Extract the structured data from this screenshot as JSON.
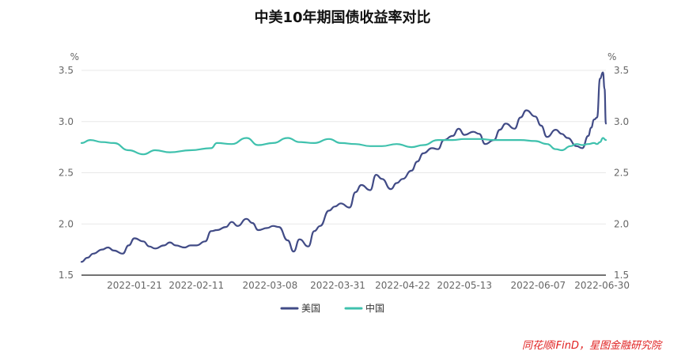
{
  "title": "中美10年期国债收益率对比",
  "source": "同花顺iFinD，星图金融研究院",
  "colors": {
    "us": "#414b86",
    "cn": "#3fc1ad",
    "grid": "#e8e8e8",
    "axis": "#444"
  },
  "chart_data": {
    "type": "line",
    "title": "中美10年期国债收益率对比",
    "y_unit_left": "%",
    "y_unit_right": "%",
    "ylim": [
      1.5,
      3.5
    ],
    "yticks": [
      "3.5",
      "3.0",
      "2.5",
      "2.0",
      "1.5"
    ],
    "xlim": [
      "2022-01-03",
      "2022-06-30"
    ],
    "xticks": [
      "2022-01-21",
      "2022-02-11",
      "2022-03-08",
      "2022-03-31",
      "2022-04-22",
      "2022-05-13",
      "2022-06-07",
      "2022-06-30"
    ],
    "legend": "bottom-center",
    "series": [
      {
        "name": "美国",
        "color": "#414b86",
        "points": [
          [
            "2022-01-03",
            1.63
          ],
          [
            "2022-01-05",
            1.67
          ],
          [
            "2022-01-07",
            1.71
          ],
          [
            "2022-01-10",
            1.75
          ],
          [
            "2022-01-12",
            1.77
          ],
          [
            "2022-01-14",
            1.74
          ],
          [
            "2022-01-17",
            1.71
          ],
          [
            "2022-01-19",
            1.79
          ],
          [
            "2022-01-21",
            1.86
          ],
          [
            "2022-01-24",
            1.83
          ],
          [
            "2022-01-26",
            1.78
          ],
          [
            "2022-01-28",
            1.76
          ],
          [
            "2022-01-31",
            1.79
          ],
          [
            "2022-02-02",
            1.82
          ],
          [
            "2022-02-04",
            1.79
          ],
          [
            "2022-02-07",
            1.77
          ],
          [
            "2022-02-09",
            1.79
          ],
          [
            "2022-02-11",
            1.79
          ],
          [
            "2022-02-14",
            1.83
          ],
          [
            "2022-02-16",
            1.93
          ],
          [
            "2022-02-18",
            1.94
          ],
          [
            "2022-02-21",
            1.97
          ],
          [
            "2022-02-23",
            2.02
          ],
          [
            "2022-02-25",
            1.98
          ],
          [
            "2022-02-28",
            2.05
          ],
          [
            "2022-03-02",
            2.01
          ],
          [
            "2022-03-04",
            1.94
          ],
          [
            "2022-03-07",
            1.96
          ],
          [
            "2022-03-09",
            1.98
          ],
          [
            "2022-03-11",
            1.97
          ],
          [
            "2022-03-14",
            1.84
          ],
          [
            "2022-03-16",
            1.73
          ],
          [
            "2022-03-18",
            1.85
          ],
          [
            "2022-03-21",
            1.78
          ],
          [
            "2022-03-23",
            1.93
          ],
          [
            "2022-03-25",
            1.98
          ],
          [
            "2022-03-28",
            2.13
          ],
          [
            "2022-03-30",
            2.17
          ],
          [
            "2022-04-01",
            2.2
          ],
          [
            "2022-04-04",
            2.16
          ],
          [
            "2022-04-06",
            2.31
          ],
          [
            "2022-04-08",
            2.38
          ],
          [
            "2022-04-11",
            2.33
          ],
          [
            "2022-04-13",
            2.48
          ],
          [
            "2022-04-15",
            2.44
          ],
          [
            "2022-04-18",
            2.34
          ],
          [
            "2022-04-20",
            2.4
          ],
          [
            "2022-04-22",
            2.44
          ],
          [
            "2022-04-25",
            2.52
          ],
          [
            "2022-04-27",
            2.61
          ],
          [
            "2022-04-29",
            2.69
          ],
          [
            "2022-05-02",
            2.74
          ],
          [
            "2022-05-04",
            2.73
          ],
          [
            "2022-05-06",
            2.82
          ],
          [
            "2022-05-09",
            2.86
          ],
          [
            "2022-05-11",
            2.93
          ],
          [
            "2022-05-13",
            2.87
          ],
          [
            "2022-05-16",
            2.9
          ],
          [
            "2022-05-18",
            2.88
          ],
          [
            "2022-05-20",
            2.78
          ],
          [
            "2022-05-23",
            2.82
          ],
          [
            "2022-05-25",
            2.92
          ],
          [
            "2022-05-27",
            2.98
          ],
          [
            "2022-05-30",
            2.93
          ],
          [
            "2022-06-01",
            3.04
          ],
          [
            "2022-06-03",
            3.11
          ],
          [
            "2022-06-06",
            3.05
          ],
          [
            "2022-06-08",
            2.96
          ],
          [
            "2022-06-10",
            2.85
          ],
          [
            "2022-06-13",
            2.92
          ],
          [
            "2022-06-15",
            2.88
          ],
          [
            "2022-06-17",
            2.84
          ],
          [
            "2022-06-20",
            2.76
          ],
          [
            "2022-06-22",
            2.74
          ],
          [
            "2022-06-24",
            2.86
          ],
          [
            "2022-06-25",
            2.94
          ],
          [
            "2022-06-26",
            3.02
          ],
          [
            "2022-06-27",
            3.04
          ],
          [
            "2022-06-28",
            3.42
          ],
          [
            "2022-06-29",
            3.48
          ],
          [
            "2022-06-29",
            3.32
          ],
          [
            "2022-06-30",
            2.98
          ]
        ]
      },
      {
        "name": "中国",
        "color": "#3fc1ad",
        "points": [
          [
            "2022-01-03",
            2.79
          ],
          [
            "2022-01-06",
            2.82
          ],
          [
            "2022-01-10",
            2.8
          ],
          [
            "2022-01-14",
            2.79
          ],
          [
            "2022-01-19",
            2.72
          ],
          [
            "2022-01-24",
            2.68
          ],
          [
            "2022-01-28",
            2.72
          ],
          [
            "2022-02-02",
            2.7
          ],
          [
            "2022-02-09",
            2.72
          ],
          [
            "2022-02-16",
            2.74
          ],
          [
            "2022-02-18",
            2.79
          ],
          [
            "2022-02-23",
            2.78
          ],
          [
            "2022-02-28",
            2.84
          ],
          [
            "2022-03-04",
            2.77
          ],
          [
            "2022-03-09",
            2.79
          ],
          [
            "2022-03-14",
            2.84
          ],
          [
            "2022-03-18",
            2.8
          ],
          [
            "2022-03-23",
            2.79
          ],
          [
            "2022-03-28",
            2.83
          ],
          [
            "2022-04-01",
            2.79
          ],
          [
            "2022-04-06",
            2.78
          ],
          [
            "2022-04-11",
            2.76
          ],
          [
            "2022-04-15",
            2.76
          ],
          [
            "2022-04-20",
            2.78
          ],
          [
            "2022-04-25",
            2.75
          ],
          [
            "2022-04-29",
            2.77
          ],
          [
            "2022-05-04",
            2.82
          ],
          [
            "2022-05-09",
            2.82
          ],
          [
            "2022-05-13",
            2.83
          ],
          [
            "2022-05-18",
            2.83
          ],
          [
            "2022-05-23",
            2.82
          ],
          [
            "2022-05-27",
            2.82
          ],
          [
            "2022-06-01",
            2.82
          ],
          [
            "2022-06-06",
            2.81
          ],
          [
            "2022-06-10",
            2.78
          ],
          [
            "2022-06-13",
            2.73
          ],
          [
            "2022-06-15",
            2.72
          ],
          [
            "2022-06-18",
            2.76
          ],
          [
            "2022-06-20",
            2.78
          ],
          [
            "2022-06-22",
            2.77
          ],
          [
            "2022-06-24",
            2.78
          ],
          [
            "2022-06-26",
            2.79
          ],
          [
            "2022-06-27",
            2.78
          ],
          [
            "2022-06-28",
            2.8
          ],
          [
            "2022-06-29",
            2.84
          ],
          [
            "2022-06-30",
            2.82
          ]
        ]
      }
    ]
  }
}
